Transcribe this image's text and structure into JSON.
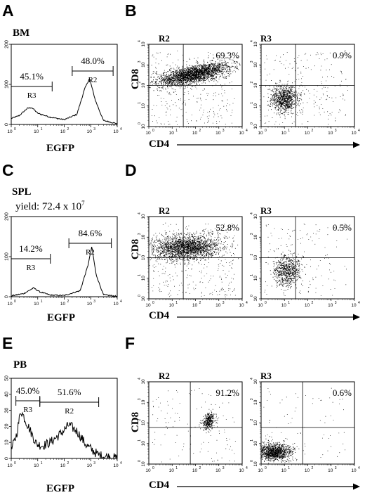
{
  "panel_labels": [
    "A",
    "B",
    "C",
    "D",
    "E",
    "F"
  ],
  "tissues": [
    "BM",
    "SPL",
    "PB"
  ],
  "yield_text": "yield: 72.4 x 10",
  "yield_exp": "7",
  "hist_xlabel": "EGFP",
  "dot_xlabel": "CD4",
  "dot_ylabel": "CD8",
  "region_labels": [
    "R2",
    "R3"
  ],
  "hist_y_ticks": [
    [
      "0",
      "100",
      "200"
    ],
    [
      "0",
      "100",
      "200"
    ],
    [
      "0",
      "10",
      "20",
      "30",
      "40",
      "50"
    ]
  ],
  "log_ticks": [
    "0",
    "1",
    "2",
    "3",
    "4"
  ],
  "chart_data": [
    {
      "type": "histogram",
      "panel": "A",
      "tissue": "BM",
      "xlabel": "EGFP",
      "xscale": "log",
      "xlim": [
        1,
        10000
      ],
      "ylim": [
        0,
        200
      ],
      "curve": [
        [
          1,
          15
        ],
        [
          2,
          22
        ],
        [
          4,
          40
        ],
        [
          6,
          42
        ],
        [
          10,
          28
        ],
        [
          30,
          18
        ],
        [
          100,
          12
        ],
        [
          300,
          25
        ],
        [
          600,
          90
        ],
        [
          900,
          115
        ],
        [
          1500,
          60
        ],
        [
          3000,
          10
        ],
        [
          10000,
          2
        ]
      ],
      "gates": [
        {
          "name": "R3",
          "range": [
            1,
            35
          ],
          "percent": "45.1%"
        },
        {
          "name": "R2",
          "range": [
            200,
            7000
          ],
          "percent": "48.0%"
        }
      ]
    },
    {
      "type": "scatter",
      "panel": "B",
      "gate": "R2",
      "tissue": "BM",
      "xlabel": "CD4",
      "ylabel": "CD8",
      "xscale": "log",
      "yscale": "log",
      "xlim": [
        1,
        10000
      ],
      "ylim": [
        1,
        10000
      ],
      "quadrant_x": 30,
      "quadrant_y": 100,
      "upper_right_percent": "69.3%"
    },
    {
      "type": "scatter",
      "panel": "B",
      "gate": "R3",
      "tissue": "BM",
      "xlabel": "CD4",
      "ylabel": "CD8",
      "xscale": "log",
      "yscale": "log",
      "xlim": [
        1,
        10000
      ],
      "ylim": [
        1,
        10000
      ],
      "quadrant_x": 30,
      "quadrant_y": 100,
      "upper_right_percent": "0.9%"
    },
    {
      "type": "histogram",
      "panel": "C",
      "tissue": "SPL",
      "xlabel": "EGFP",
      "xscale": "log",
      "xlim": [
        1,
        10000
      ],
      "ylim": [
        0,
        200
      ],
      "curve": [
        [
          1,
          2
        ],
        [
          3,
          8
        ],
        [
          7,
          22
        ],
        [
          12,
          12
        ],
        [
          30,
          4
        ],
        [
          100,
          3
        ],
        [
          400,
          15
        ],
        [
          800,
          80
        ],
        [
          1100,
          125
        ],
        [
          1600,
          55
        ],
        [
          3000,
          5
        ],
        [
          10000,
          1
        ]
      ],
      "gates": [
        {
          "name": "R3",
          "range": [
            1,
            30
          ],
          "percent": "14.2%"
        },
        {
          "name": "R2",
          "range": [
            150,
            6000
          ],
          "percent": "84.6%"
        }
      ]
    },
    {
      "type": "scatter",
      "panel": "D",
      "gate": "R2",
      "tissue": "SPL",
      "xlabel": "CD4",
      "ylabel": "CD8",
      "xscale": "log",
      "yscale": "log",
      "xlim": [
        1,
        10000
      ],
      "ylim": [
        1,
        10000
      ],
      "quadrant_x": 30,
      "quadrant_y": 100,
      "upper_right_percent": "52.8%"
    },
    {
      "type": "scatter",
      "panel": "D",
      "gate": "R3",
      "tissue": "SPL",
      "xlabel": "CD4",
      "ylabel": "CD8",
      "xscale": "log",
      "yscale": "log",
      "xlim": [
        1,
        10000
      ],
      "ylim": [
        1,
        10000
      ],
      "quadrant_x": 30,
      "quadrant_y": 100,
      "upper_right_percent": "0.5%"
    },
    {
      "type": "histogram",
      "panel": "E",
      "tissue": "PB",
      "xlabel": "EGFP",
      "xscale": "log",
      "xlim": [
        1,
        10000
      ],
      "ylim": [
        0,
        50
      ],
      "curve": [
        [
          1,
          5
        ],
        [
          1.6,
          15
        ],
        [
          2.3,
          30
        ],
        [
          3,
          26
        ],
        [
          5,
          18
        ],
        [
          9,
          9
        ],
        [
          15,
          8
        ],
        [
          30,
          10
        ],
        [
          80,
          16
        ],
        [
          150,
          21
        ],
        [
          300,
          17
        ],
        [
          700,
          8
        ],
        [
          2000,
          2
        ],
        [
          10000,
          0
        ]
      ],
      "gates": [
        {
          "name": "R3",
          "range": [
            1.5,
            12
          ],
          "percent": "45.0%"
        },
        {
          "name": "R2",
          "range": [
            12,
            2000
          ],
          "percent": "51.6%"
        }
      ]
    },
    {
      "type": "scatter",
      "panel": "F",
      "gate": "R2",
      "tissue": "PB",
      "xlabel": "CD4",
      "ylabel": "CD8",
      "xscale": "log",
      "yscale": "log",
      "xlim": [
        1,
        10000
      ],
      "ylim": [
        1,
        10000
      ],
      "quadrant_x": 60,
      "quadrant_y": 60,
      "upper_right_percent": "91.2%"
    },
    {
      "type": "scatter",
      "panel": "F",
      "gate": "R3",
      "tissue": "PB",
      "xlabel": "CD4",
      "ylabel": "CD8",
      "xscale": "log",
      "yscale": "log",
      "xlim": [
        1,
        10000
      ],
      "ylim": [
        1,
        10000
      ],
      "quadrant_x": 60,
      "quadrant_y": 60,
      "upper_right_percent": "0.6%"
    }
  ]
}
